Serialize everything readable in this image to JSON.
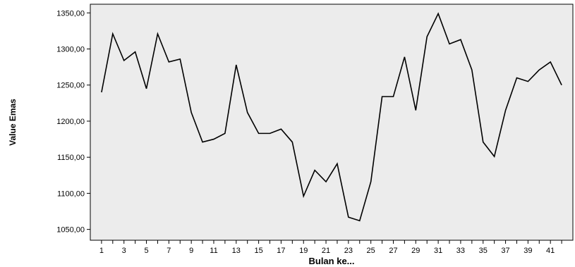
{
  "chart_data": {
    "type": "line",
    "xlabel": "Bulan ke...",
    "ylabel": "Value Emas",
    "xlim": [
      0,
      43
    ],
    "ylim": [
      1035,
      1362
    ],
    "x_ticks": [
      1,
      3,
      5,
      7,
      9,
      11,
      13,
      15,
      17,
      19,
      21,
      23,
      25,
      27,
      29,
      31,
      33,
      35,
      37,
      39,
      41
    ],
    "x_tick_labels": [
      "1",
      "3",
      "5",
      "7",
      "9",
      "11",
      "13",
      "15",
      "17",
      "19",
      "21",
      "23",
      "25",
      "27",
      "29",
      "31",
      "33",
      "35",
      "37",
      "39",
      "41"
    ],
    "y_ticks": [
      1050,
      1100,
      1150,
      1200,
      1250,
      1300,
      1350
    ],
    "y_tick_labels": [
      "1050,00",
      "1100,00",
      "1150,00",
      "1200,00",
      "1250,00",
      "1300,00",
      "1350,00"
    ],
    "grid": false,
    "plot_background": "#ececec",
    "line_color": "#000000",
    "x": [
      1,
      2,
      3,
      4,
      5,
      6,
      7,
      8,
      9,
      10,
      11,
      12,
      13,
      14,
      15,
      16,
      17,
      18,
      19,
      20,
      21,
      22,
      23,
      24,
      25,
      26,
      27,
      28,
      29,
      30,
      31,
      32,
      33,
      34,
      35,
      36,
      37,
      38,
      39,
      40,
      41,
      42
    ],
    "values": [
      1240,
      1321,
      1284,
      1296,
      1245,
      1321,
      1282,
      1286,
      1212,
      1171,
      1175,
      1183,
      1278,
      1212,
      1183,
      1183,
      1189,
      1171,
      1096,
      1132,
      1116,
      1141,
      1067,
      1062,
      1116,
      1234,
      1234,
      1289,
      1215,
      1317,
      1349,
      1307,
      1313,
      1271,
      1171,
      1151,
      1215,
      1260,
      1255,
      1271,
      1282,
      1250
    ]
  }
}
